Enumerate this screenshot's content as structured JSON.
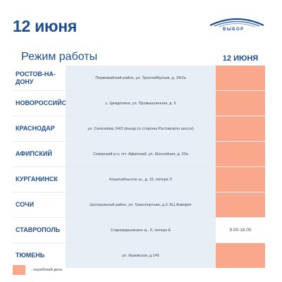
{
  "date_title": "12 июня",
  "logo": {
    "text": "ВЫБОР",
    "icon": "logo-arcs-icon"
  },
  "schedule_header": "Режим работы",
  "day_header": "12 ИЮНЯ",
  "colors": {
    "accent": "#1f4e8c",
    "closed": "#f9a88b",
    "address_bg": "#e8eef5"
  },
  "rows": [
    {
      "city": "РОСТОВ-НА-ДОНУ",
      "address": "Первомайский район, ул. Троллейбусная, д. 24/2а",
      "status": "closed",
      "hours": ""
    },
    {
      "city": "НОВОРОССИЙСК",
      "address": "с. Цемдолина, ул. Промышленная, д. 5",
      "status": "closed",
      "hours": ""
    },
    {
      "city": "КРАСНОДАР",
      "address": "ул. Селезнёва, 64/3 (въезд со стороны Ростовского шоссе)",
      "status": "closed",
      "hours": ""
    },
    {
      "city": "АФИПСКИЙ",
      "address": "Северский р-н, пгт. Афипский, ул. Шоссейная, д. 20а",
      "status": "closed",
      "hours": ""
    },
    {
      "city": "КУРГАНИНСК",
      "address": "Кошехабльское ш., д. 15, литера Л",
      "status": "closed",
      "hours": ""
    },
    {
      "city": "СОЧИ",
      "address": "Центральный район, ул. Транспортная, д.3, БЦ Фаворит",
      "status": "closed",
      "hours": ""
    },
    {
      "city": "СТАВРОПОЛЬ",
      "address": "Старомарьевское ш., 6, литера Е",
      "status": "open",
      "hours": "9.00-18.00"
    },
    {
      "city": "ТЮМЕНЬ",
      "address": "ул. Ишимская, д.149",
      "status": "closed",
      "hours": ""
    }
  ],
  "legend": {
    "text": "- нерабочий день"
  }
}
